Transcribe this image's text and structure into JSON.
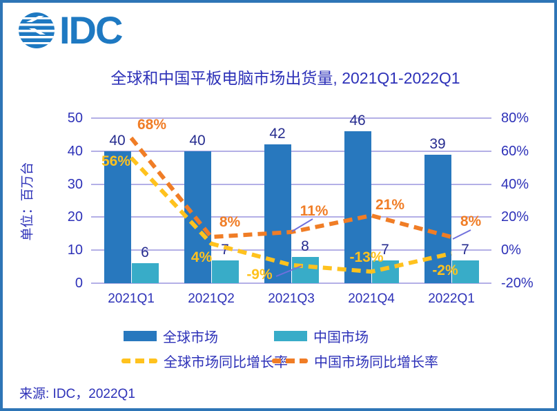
{
  "logo": {
    "text": "IDC"
  },
  "title": "全球和中国平板电脑市场出货量, 2021Q1-2022Q1",
  "y_axis_title": "单位：百万台",
  "source": "来源: IDC，2022Q1",
  "colors": {
    "frame_border": "#2E75B6",
    "logo_blue": "#1E79C2",
    "text_blue": "#2D31B8",
    "bar_label_navy": "#262C8F",
    "global_bar": "#2878BE",
    "china_bar": "#38ACC8",
    "global_growth": "#FFC21E",
    "china_growth": "#F07D26",
    "gridline": "#B3AFE6",
    "leader_line": "#7070DC"
  },
  "legend": {
    "items": [
      {
        "label": "全球市场",
        "swatch": "bar",
        "color_key": "global_bar"
      },
      {
        "label": "中国市场",
        "swatch": "bar",
        "color_key": "china_bar"
      },
      {
        "label": "全球市场同比增长率",
        "swatch": "dash",
        "color_key": "global_growth"
      },
      {
        "label": "中国市场同比增长率",
        "swatch": "dash",
        "color_key": "china_growth"
      }
    ]
  },
  "chart_data": {
    "type": "bar+line combo",
    "title": "全球和中国平板电脑市场出货量, 2021Q1-2022Q1",
    "categories": [
      "2021Q1",
      "2021Q2",
      "2021Q3",
      "2021Q4",
      "2022Q1"
    ],
    "series": [
      {
        "name": "全球市场",
        "type": "bar",
        "axis": "left",
        "color_key": "global_bar",
        "values": [
          40,
          40,
          42,
          46,
          39
        ],
        "labels": [
          "40",
          "40",
          "42",
          "46",
          "39"
        ]
      },
      {
        "name": "中国市场",
        "type": "bar",
        "axis": "left",
        "color_key": "china_bar",
        "values": [
          6,
          7,
          8,
          7,
          7
        ],
        "labels": [
          "6",
          "7",
          "8",
          "7",
          "7"
        ]
      },
      {
        "name": "全球市场同比增长率",
        "type": "line",
        "axis": "right",
        "color_key": "global_growth",
        "values": [
          56,
          4,
          -9,
          -13,
          -2
        ],
        "labels": [
          "56%",
          "4%",
          "-9%",
          "-13%",
          "-2%"
        ]
      },
      {
        "name": "中国市场同比增长率",
        "type": "line",
        "axis": "right",
        "color_key": "china_growth",
        "values": [
          68,
          8,
          11,
          21,
          8
        ],
        "labels": [
          "68%",
          "8%",
          "11%",
          "21%",
          "8%"
        ]
      }
    ],
    "left_axis": {
      "label": "单位：百万台",
      "min": 0,
      "max": 50,
      "ticks": [
        "50",
        "40",
        "30",
        "20",
        "10",
        "0"
      ]
    },
    "right_axis": {
      "min": -20,
      "max": 80,
      "ticks": [
        "80%",
        "60%",
        "40%",
        "20%",
        "0%",
        "-20%"
      ]
    },
    "grid": true,
    "legend_position": "bottom"
  }
}
